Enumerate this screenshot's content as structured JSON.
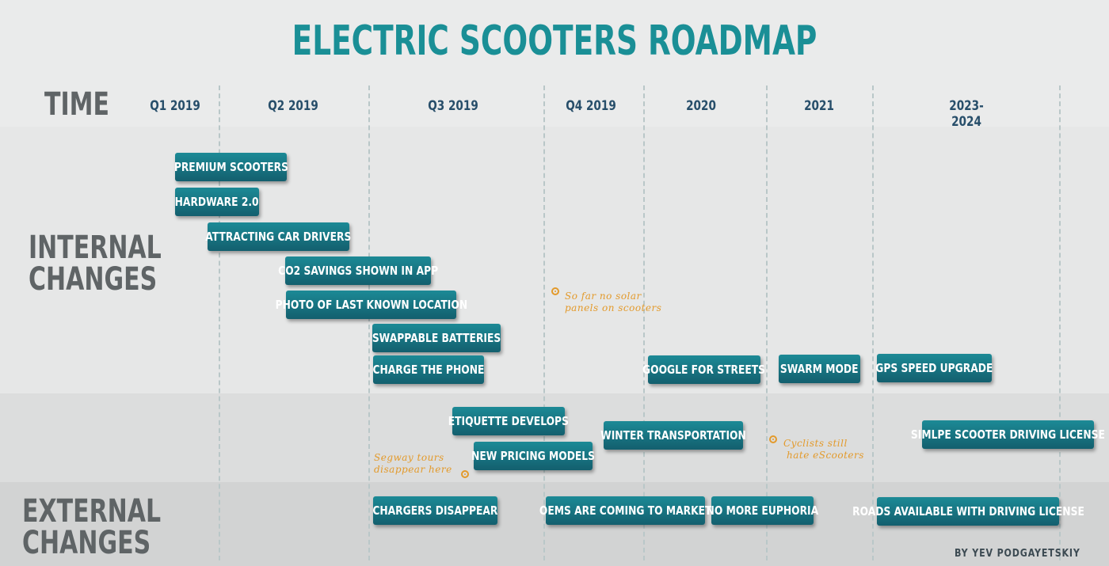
{
  "title": "ELECTRIC SCOOTERS ROADMAP",
  "rows": {
    "time": "TIME",
    "internal_line1": "INTERNAL",
    "internal_line2": "CHANGES",
    "external_line1": "EXTERNAL",
    "external_line2": "CHANGES"
  },
  "periods": [
    "Q1 2019",
    "Q2 2019",
    "Q3 2019",
    "Q4 2019",
    "2020",
    "2021",
    "2023-2024"
  ],
  "internal_items": [
    "PREMIUM  SCOOTERS",
    "HARDWARE 2.0",
    "ATTRACTING CAR DRIVERS",
    "CO2 SAVINGS SHOWN IN APP",
    "PHOTO OF LAST KNOWN LOCATION",
    "SWAPPABLE BATTERIES",
    "CHARGE THE PHONE",
    "GOOGLE FOR STREETS",
    "SWARM MODE",
    "GPS SPEED UPGRADE"
  ],
  "middle_items": [
    "ETIQUETTE DEVELOPS",
    "NEW PRICING MODELS",
    "WINTER TRANSPORTATION",
    "SIMLPE SCOOTER DRIVING LICENSE"
  ],
  "external_items": [
    "CHARGERS DISAPPEAR",
    "OEMS ARE COMING TO MARKET",
    "NO MORE EUPHORIA",
    "ROADS AVAILABLE WITH DRIVING LICENSE"
  ],
  "notes": {
    "solar_line1": "So far no solar",
    "solar_line2": "panels on scooters",
    "segway_line1": "Segway tours",
    "segway_line2": "disappear here",
    "cyclists_line1": "Cyclists still",
    "cyclists_line2": "hate eScooters"
  },
  "author": "BY  YEV  PODGAYETSKIY",
  "colors": {
    "title": "#1a8f96",
    "chip": "#135f6e",
    "note": "#e39a2b",
    "row_label": "#5f6466"
  }
}
